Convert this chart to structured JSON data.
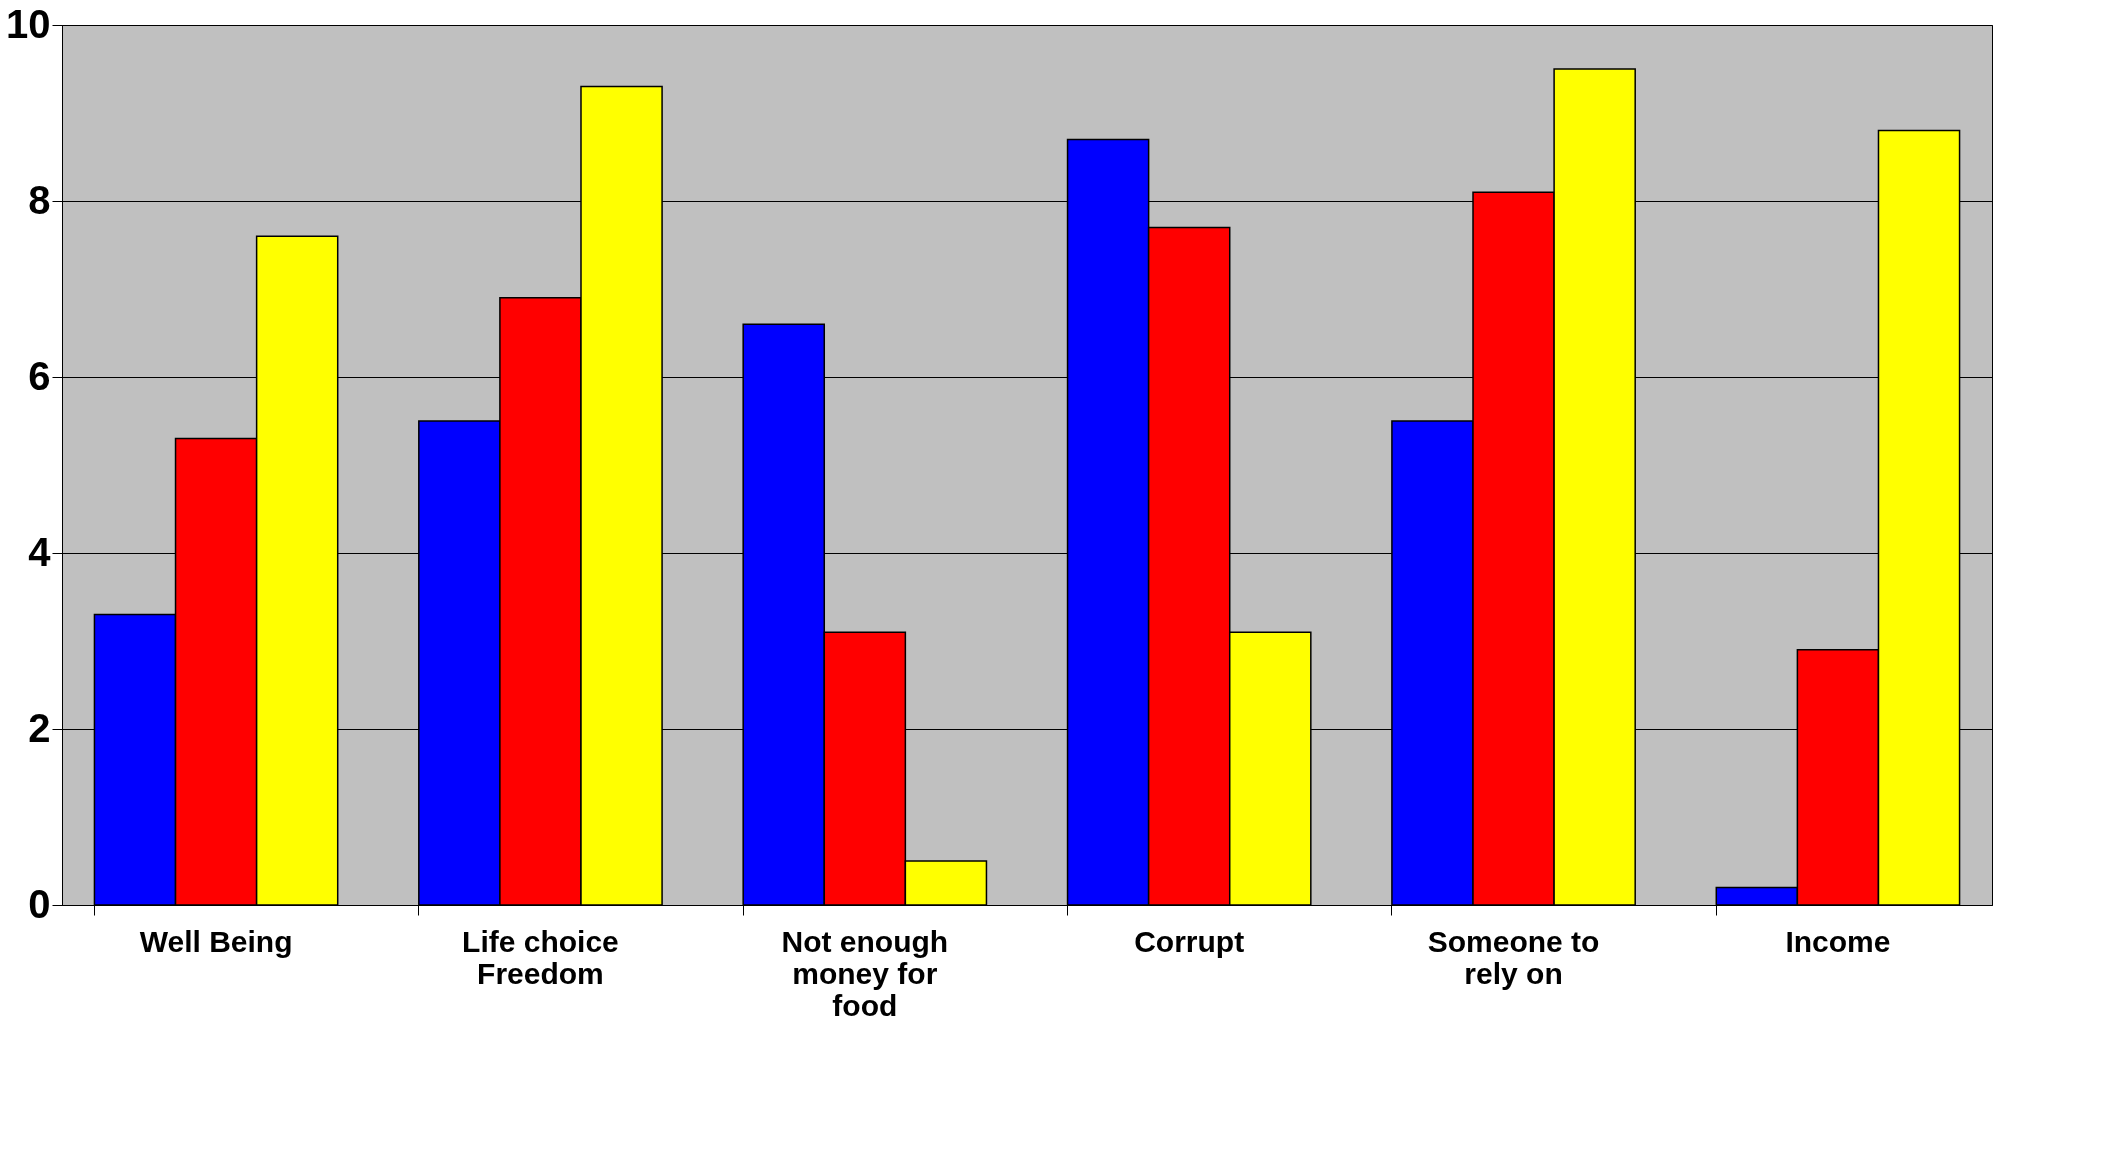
{
  "chart_data": {
    "type": "bar",
    "categories": [
      "Well Being",
      "Life choice Freedom",
      "Not enough money for food",
      "Corrupt",
      "Someone to rely on",
      "Income"
    ],
    "series": [
      {
        "color": "#0000ff",
        "values": [
          3.3,
          5.5,
          6.6,
          8.7,
          5.5,
          0.2
        ]
      },
      {
        "color": "#ff0000",
        "values": [
          5.3,
          6.9,
          3.1,
          7.7,
          8.1,
          2.9
        ]
      },
      {
        "color": "#ffff00",
        "values": [
          7.6,
          9.3,
          0.5,
          3.1,
          9.5,
          8.8
        ]
      }
    ],
    "ylim": [
      0,
      10
    ],
    "yticks": [
      0,
      2,
      4,
      6,
      8,
      10
    ],
    "grid": "y",
    "legend": false
  }
}
